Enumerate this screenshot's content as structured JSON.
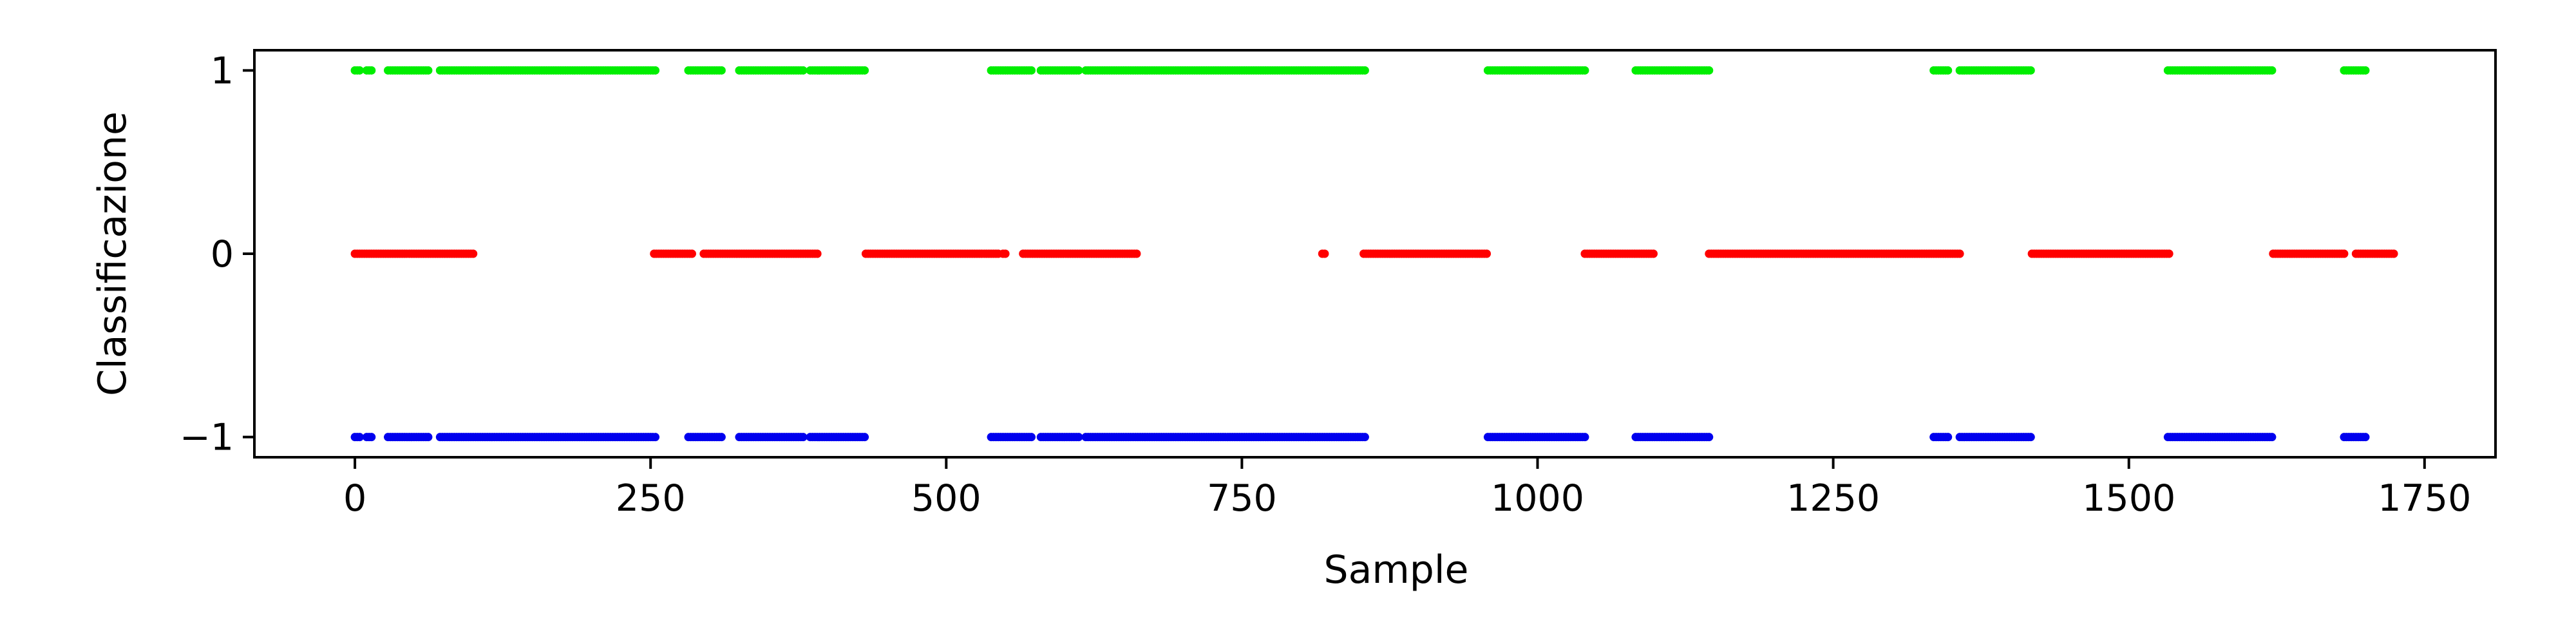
{
  "chart_data": {
    "type": "scatter",
    "title": "",
    "xlabel": "Sample",
    "ylabel": "Classificazione",
    "xlim": [
      -85,
      1810
    ],
    "ylim": [
      -1.11,
      1.11
    ],
    "xticks": [
      0,
      250,
      500,
      750,
      1000,
      1250,
      1500,
      1750
    ],
    "xtick_labels": [
      "0",
      "250",
      "500",
      "750",
      "1000",
      "1250",
      "1500",
      "1750"
    ],
    "yticks": [
      -1,
      0,
      1
    ],
    "ytick_labels": [
      "−1",
      "0",
      "1"
    ],
    "grid": false,
    "legend": "none",
    "series": [
      {
        "color": "#00ee00",
        "y": 1,
        "segments": [
          [
            0,
            5
          ],
          [
            10,
            15
          ],
          [
            28,
            62
          ],
          [
            72,
            255
          ],
          [
            282,
            310
          ],
          [
            325,
            380
          ],
          [
            385,
            432
          ],
          [
            538,
            572
          ],
          [
            580,
            612
          ],
          [
            618,
            855
          ],
          [
            958,
            1040
          ],
          [
            1083,
            1145
          ],
          [
            1335,
            1348
          ],
          [
            1357,
            1418
          ],
          [
            1533,
            1622
          ],
          [
            1682,
            1700
          ]
        ]
      },
      {
        "color": "#ff0000",
        "y": 0,
        "segments": [
          [
            0,
            100
          ],
          [
            253,
            285
          ],
          [
            295,
            392
          ],
          [
            432,
            545
          ],
          [
            548,
            550
          ],
          [
            565,
            662
          ],
          [
            818,
            820
          ],
          [
            853,
            958
          ],
          [
            1040,
            1098
          ],
          [
            1145,
            1357
          ],
          [
            1418,
            1535
          ],
          [
            1622,
            1682
          ],
          [
            1692,
            1725
          ]
        ]
      },
      {
        "color": "#0000ee",
        "y": -1,
        "segments": [
          [
            0,
            5
          ],
          [
            10,
            15
          ],
          [
            28,
            62
          ],
          [
            72,
            255
          ],
          [
            282,
            310
          ],
          [
            325,
            380
          ],
          [
            385,
            432
          ],
          [
            538,
            572
          ],
          [
            580,
            612
          ],
          [
            618,
            855
          ],
          [
            958,
            1040
          ],
          [
            1083,
            1145
          ],
          [
            1335,
            1348
          ],
          [
            1357,
            1418
          ],
          [
            1533,
            1622
          ],
          [
            1682,
            1700
          ]
        ]
      }
    ]
  }
}
